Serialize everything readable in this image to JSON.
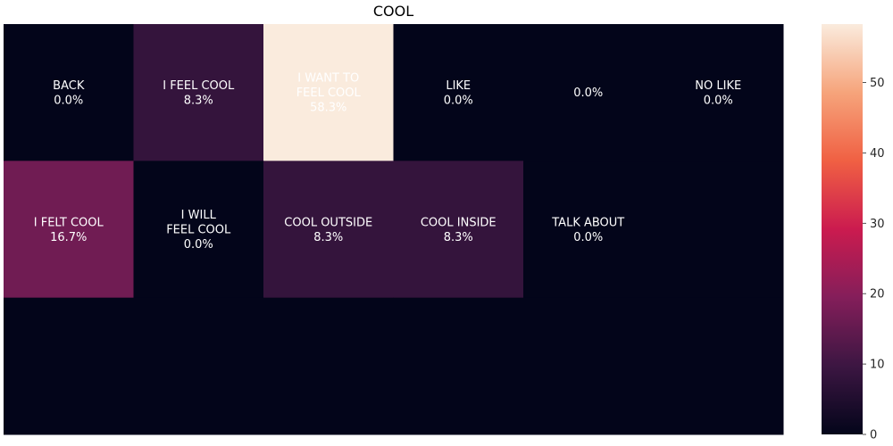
{
  "chart_data": {
    "type": "heatmap",
    "title": "COOL",
    "rows": 3,
    "cols": 6,
    "cells": [
      [
        {
          "label": "BACK",
          "value": 0.0,
          "text": "0.0%"
        },
        {
          "label": "I FEEL COOL",
          "value": 8.3,
          "text": "8.3%"
        },
        {
          "label": "I WANT TO\nFEEL COOL",
          "value": 58.3,
          "text": "58.3%"
        },
        {
          "label": "LIKE",
          "value": 0.0,
          "text": "0.0%"
        },
        {
          "label": "",
          "value": 0.0,
          "text": "0.0%"
        },
        {
          "label": "NO LIKE",
          "value": 0.0,
          "text": "0.0%"
        }
      ],
      [
        {
          "label": "I FELT COOL",
          "value": 16.7,
          "text": "16.7%"
        },
        {
          "label": "I WILL\nFEEL COOL",
          "value": 0.0,
          "text": "0.0%"
        },
        {
          "label": "COOL OUTSIDE",
          "value": 8.3,
          "text": "8.3%"
        },
        {
          "label": "COOL INSIDE",
          "value": 8.3,
          "text": "8.3%"
        },
        {
          "label": "TALK ABOUT",
          "value": 0.0,
          "text": "0.0%"
        },
        {
          "label": "",
          "value": 0.0,
          "text": ""
        }
      ],
      [
        {
          "label": "",
          "value": 0.0,
          "text": ""
        },
        {
          "label": "",
          "value": 0.0,
          "text": ""
        },
        {
          "label": "",
          "value": 0.0,
          "text": ""
        },
        {
          "label": "",
          "value": 0.0,
          "text": ""
        },
        {
          "label": "",
          "value": 0.0,
          "text": ""
        },
        {
          "label": "",
          "value": 0.0,
          "text": ""
        }
      ]
    ],
    "colorbar": {
      "min": 0,
      "max": 58.3,
      "ticks": [
        0,
        10,
        20,
        30,
        40,
        50
      ],
      "colormap": "rocket",
      "colors": [
        "#03051a",
        "#3c1642",
        "#841e5a",
        "#cb1b4f",
        "#f06043",
        "#f6a47b",
        "#faebdd"
      ]
    },
    "xticks": [],
    "yticks": []
  }
}
